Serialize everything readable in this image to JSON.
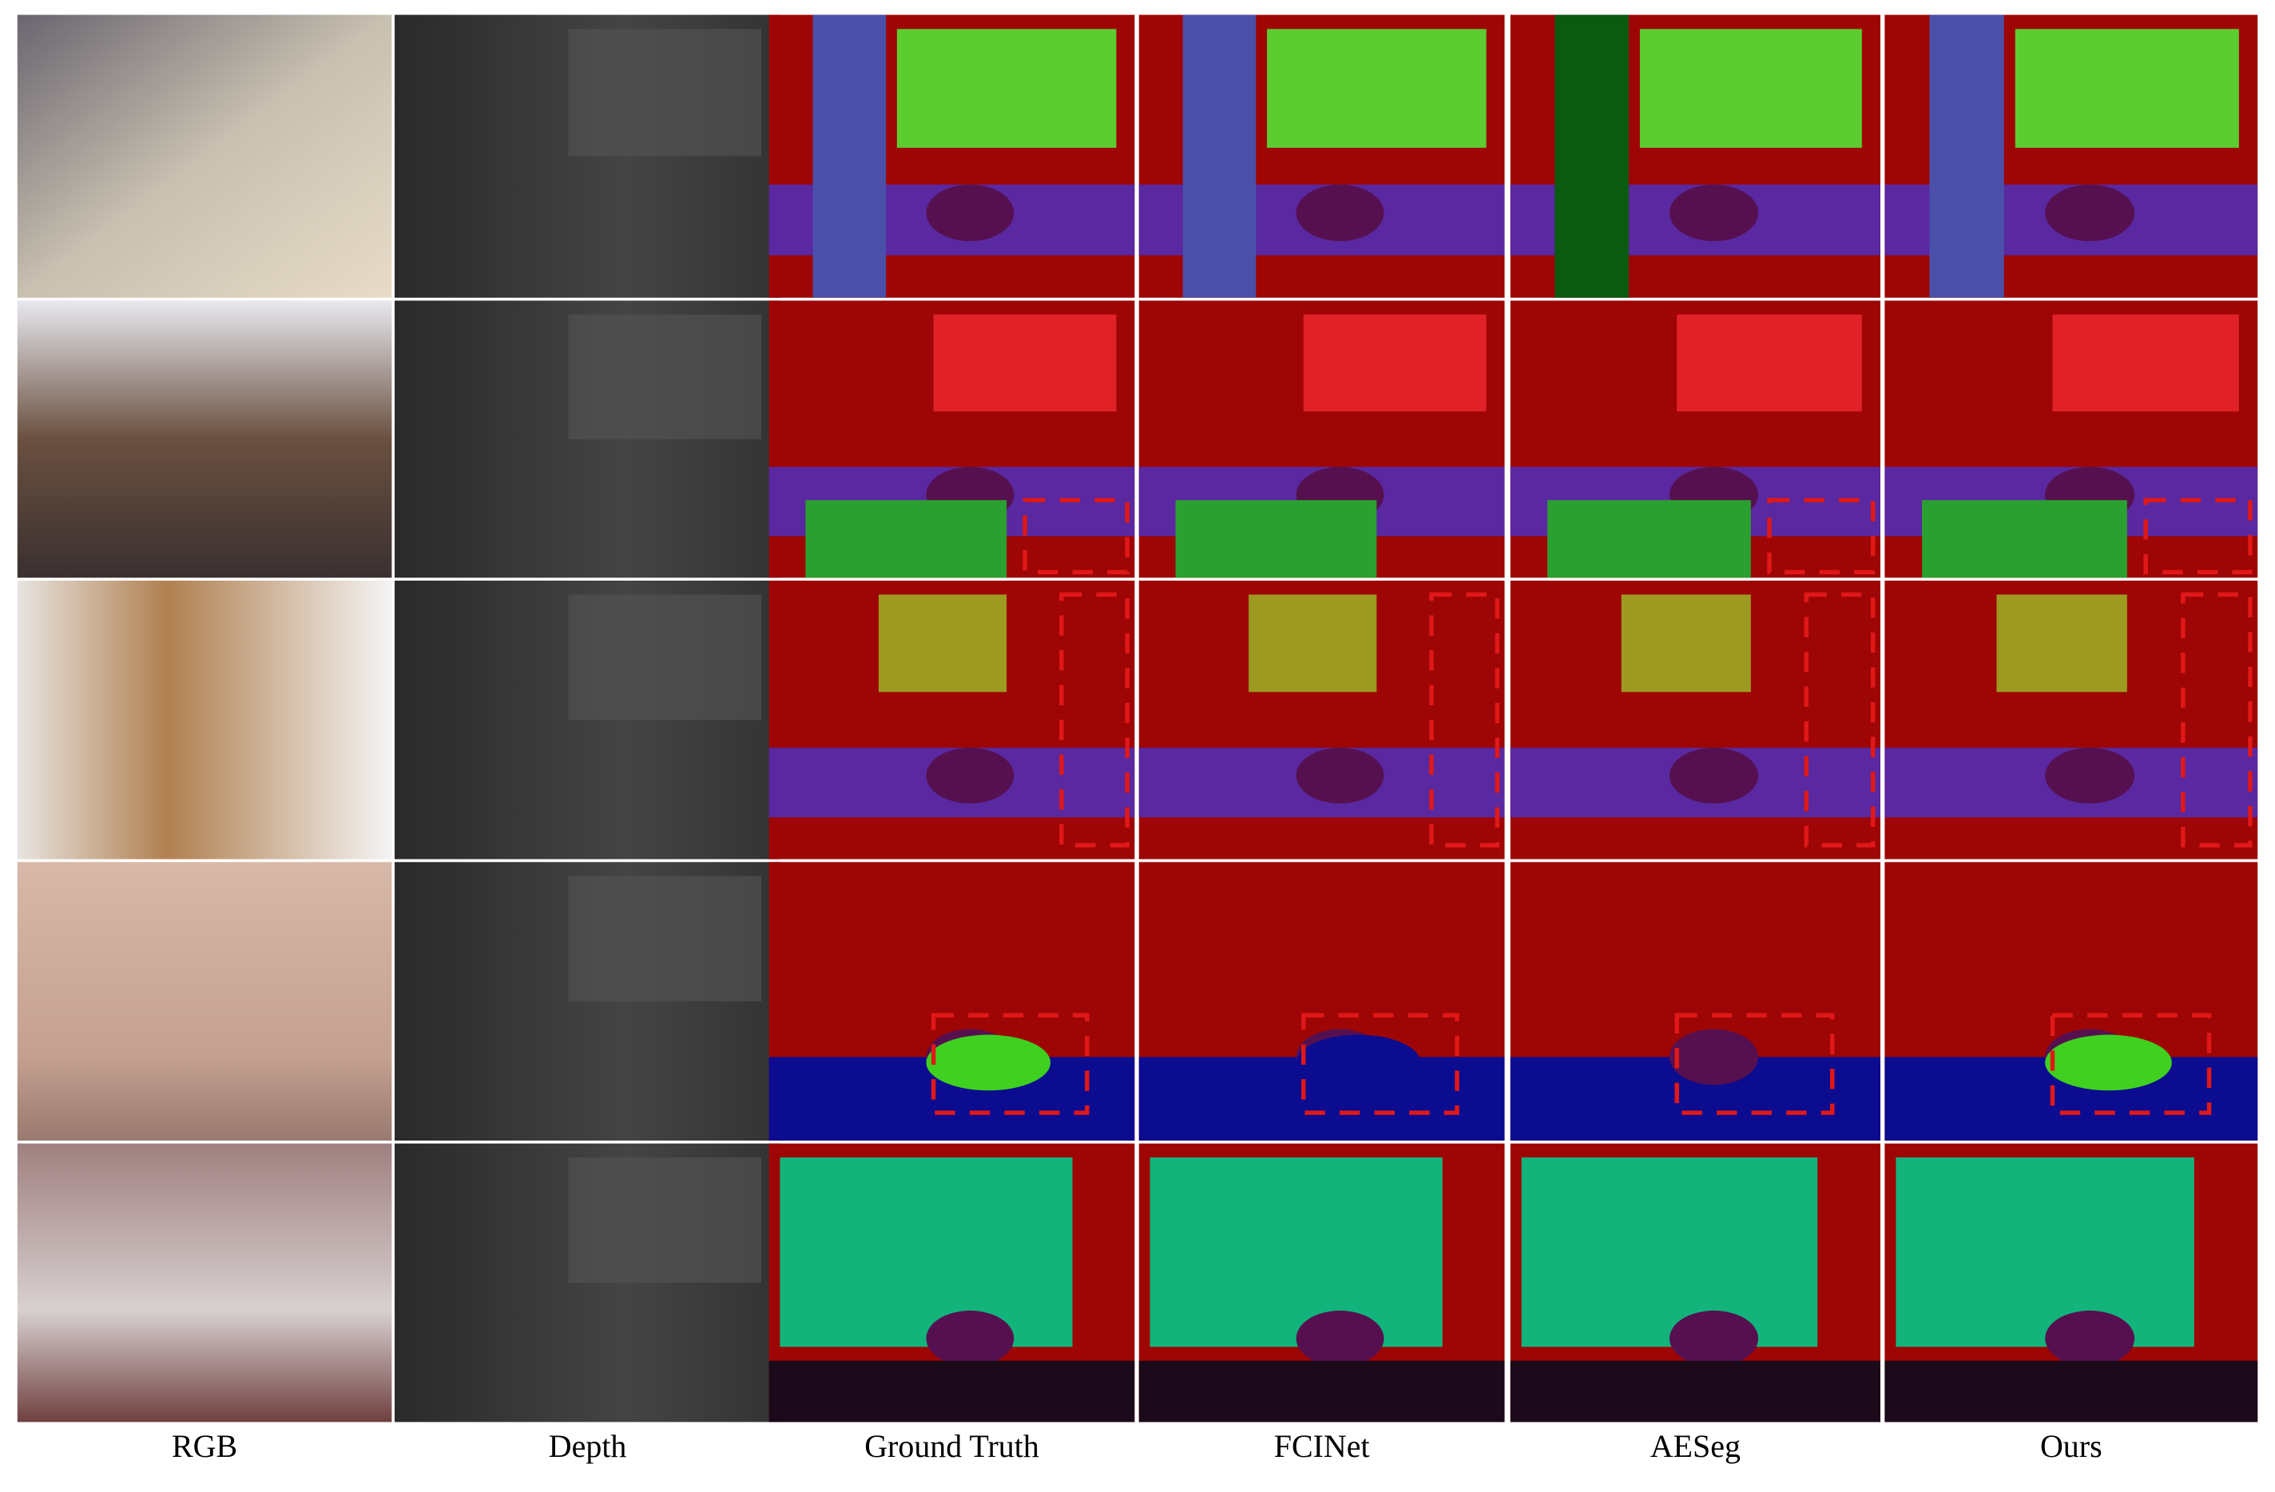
{
  "columns": [
    "RGB",
    "Depth",
    "Ground Truth",
    "FCINet",
    "AESeg",
    "Ours"
  ]
}
